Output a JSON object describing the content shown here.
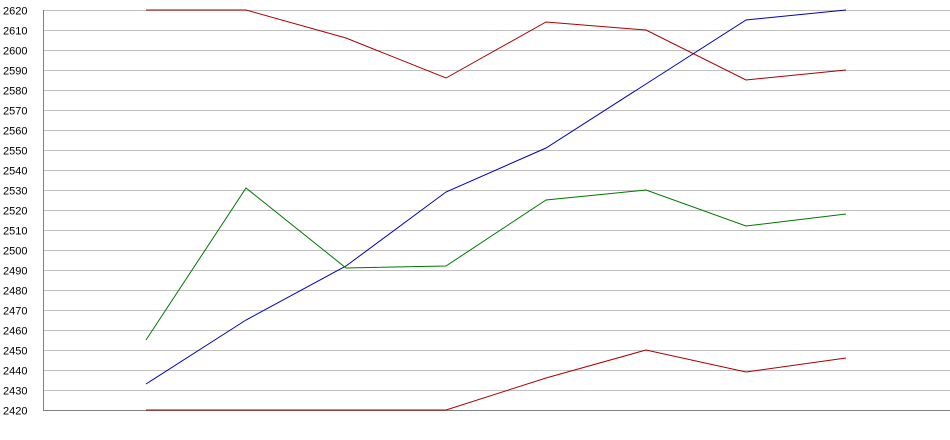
{
  "chart_data": {
    "type": "line",
    "title": "",
    "xlabel": "",
    "ylabel": "",
    "ylim": [
      2420,
      2620
    ],
    "ytick_step": 10,
    "x": [
      1,
      2,
      3,
      4,
      5,
      6,
      7,
      8
    ],
    "grid": "horizontal",
    "series": [
      {
        "color": "#aa0000",
        "values": [
          2620,
          2620,
          2606,
          2586,
          2614,
          2610,
          2585,
          2590
        ]
      },
      {
        "color": "#0000bb",
        "values": [
          2433,
          2465,
          2492,
          2529,
          2551,
          2583,
          2615,
          2620
        ]
      },
      {
        "color": "#007700",
        "values": [
          2455,
          2531,
          2491,
          2492,
          2525,
          2530,
          2512,
          2518
        ]
      },
      {
        "color": "#aa0000",
        "values": [
          2420,
          2420,
          2420,
          2420,
          2436,
          2450,
          2439,
          2446
        ]
      }
    ]
  },
  "colors": {
    "grid": "#c0c0c0",
    "axis": "#808080",
    "background": "#ffffff"
  }
}
